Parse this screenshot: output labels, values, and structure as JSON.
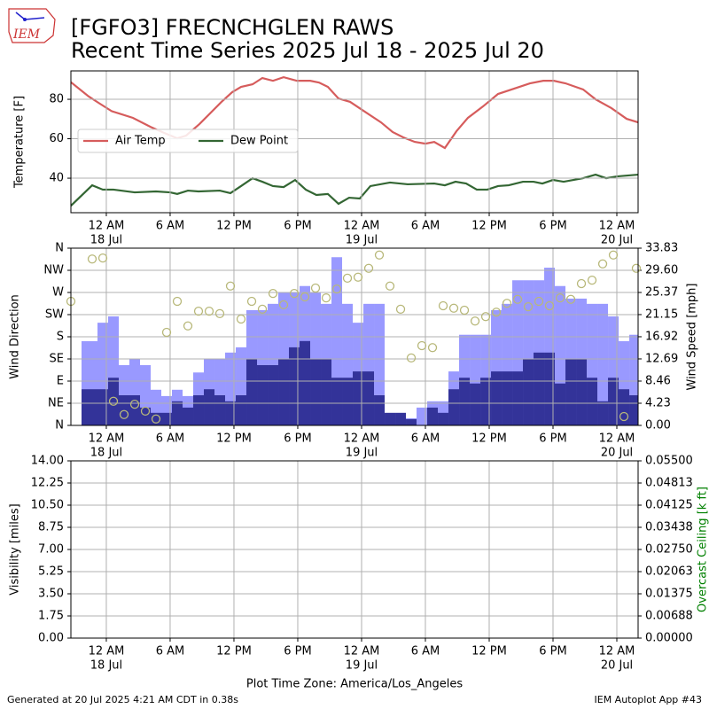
{
  "header": {
    "logo_text": "IEM",
    "title": "[FGFO3] FRECNCHGLEN RAWS",
    "subtitle": "Recent Time Series 2025 Jul 18 - 2025 Jul 20"
  },
  "x_axis": {
    "label": "Plot Time Zone: America/Los_Angeles",
    "xlim": [
      -3.33,
      50
    ],
    "xticks": [
      {
        "value": 0,
        "label": "12 AM"
      },
      {
        "value": 6,
        "label": "6 AM"
      },
      {
        "value": 12,
        "label": "12 PM"
      },
      {
        "value": 18,
        "label": "6 PM"
      },
      {
        "value": 24,
        "label": "12 AM"
      },
      {
        "value": 30,
        "label": "6 AM"
      },
      {
        "value": 36,
        "label": "12 PM"
      },
      {
        "value": 42,
        "label": "6 PM"
      },
      {
        "value": 48,
        "label": "12 AM"
      }
    ],
    "xtick_dates": [
      {
        "value": 0,
        "label": "18 Jul"
      },
      {
        "value": 24,
        "label": "19 Jul"
      },
      {
        "value": 48,
        "label": "20 Jul"
      }
    ]
  },
  "chart_data": [
    {
      "type": "line",
      "ylabel": "Temperature [F]",
      "ylim": [
        22.5,
        94.4
      ],
      "yticks": [
        40,
        60,
        80
      ],
      "grid": true,
      "legend": "upper left",
      "series": [
        {
          "name": "Air Temp",
          "color": "#d65c5c",
          "x": [
            -3.33,
            -1.67,
            -0.67,
            0.5,
            2.5,
            4.17,
            5.42,
            6.67,
            7.5,
            8.75,
            10.83,
            11.83,
            12.67,
            13.75,
            14.67,
            15.67,
            16.67,
            17.92,
            19.17,
            20,
            20.83,
            21.83,
            22.92,
            24.17,
            25.83,
            26.92,
            27.92,
            29,
            30,
            30.83,
            31.83,
            32.92,
            34,
            35.42,
            36.83,
            38.33,
            39.83,
            41.08,
            42.08,
            43.17,
            44.83,
            46,
            47.5,
            48.92,
            50
          ],
          "values": [
            88.7,
            81.5,
            78,
            74,
            70.6,
            66,
            63,
            60.2,
            61.6,
            67.4,
            78.7,
            83.6,
            86.3,
            87.6,
            90.8,
            89.4,
            91.2,
            89.4,
            89.4,
            88.5,
            86.3,
            80.4,
            78.7,
            74.2,
            68.3,
            63.4,
            60.7,
            58.4,
            57.5,
            58.4,
            55.3,
            63.8,
            70.6,
            76.4,
            82.7,
            85.4,
            88.1,
            89.4,
            89.4,
            88.1,
            85,
            80,
            75.5,
            70.1,
            68.3
          ]
        },
        {
          "name": "Dew Point",
          "color": "#336633",
          "x": [
            -3.33,
            -1.33,
            -0.33,
            0.67,
            2.67,
            4.67,
            6,
            6.67,
            7.67,
            8.67,
            10.67,
            11.67,
            12.67,
            13.75,
            14.67,
            15.67,
            16.67,
            17.75,
            18.75,
            19.75,
            20.83,
            21.83,
            22.83,
            23.83,
            24.83,
            26.67,
            28.33,
            30.83,
            31.83,
            32.83,
            33.83,
            34.83,
            35.83,
            36.83,
            37.83,
            39.17,
            40.17,
            41,
            42,
            43,
            44.83,
            46,
            47,
            48,
            50
          ],
          "values": [
            26,
            36.4,
            34.2,
            34.2,
            32.8,
            33.3,
            32.8,
            32,
            33.7,
            33.3,
            33.7,
            32.4,
            36,
            40,
            38.2,
            36,
            35.5,
            39.1,
            34.2,
            31.5,
            32,
            27,
            30.1,
            29.7,
            36,
            37.8,
            36.9,
            37.3,
            36.4,
            38.2,
            37.3,
            34.2,
            34.2,
            36,
            36.4,
            38.2,
            38.2,
            37.3,
            39.1,
            38.2,
            40,
            41.8,
            40,
            40.9,
            41.8
          ]
        }
      ]
    },
    {
      "type": "wind",
      "ylabel": "Wind Direction",
      "y2label": "Wind Speed [mph]",
      "grid": true,
      "ylim": [
        0,
        360
      ],
      "yticks": [
        {
          "value": 0,
          "label": "N"
        },
        {
          "value": 45,
          "label": "NE"
        },
        {
          "value": 90,
          "label": "E"
        },
        {
          "value": 135,
          "label": "SE"
        },
        {
          "value": 180,
          "label": "S"
        },
        {
          "value": 225,
          "label": "SW"
        },
        {
          "value": 270,
          "label": "W"
        },
        {
          "value": 315,
          "label": "NW"
        },
        {
          "value": 360,
          "label": "N"
        }
      ],
      "y2lim": [
        0,
        33.83
      ],
      "y2ticks": [
        {
          "value": 0,
          "label": "0.00"
        },
        4.23,
        8.46,
        12.69,
        16.92,
        21.15,
        25.37,
        {
          "value": 29.6,
          "label": "29.60"
        },
        33.83
      ],
      "bins": [
        -2.33,
        -0.83,
        0.17,
        1.17,
        2.17,
        3.17,
        4.17,
        5.17,
        6.17,
        7.17,
        8.17,
        9.17,
        10.17,
        11.17,
        12.17,
        13.17,
        14.17,
        15.17,
        16.17,
        17.17,
        18.17,
        19.17,
        20.17,
        21.17,
        22.17,
        23.17,
        24.17,
        25.17,
        26.17,
        27.17,
        28.17,
        29.17,
        30.17,
        31.17,
        32.17,
        33.17,
        34.17,
        35.17,
        36.17,
        37.17,
        38.17,
        39.17,
        40.17,
        41.17,
        42.17,
        43.17,
        44.17,
        45.17,
        46.17,
        47.17,
        48.17,
        49.17,
        50
      ],
      "gust": {
        "color": "#9999ff",
        "axis": "y2",
        "values": [
          16.07,
          19.6,
          20.8,
          11.5,
          12.7,
          11.5,
          6.8,
          5.6,
          6.8,
          5.6,
          10.1,
          12.7,
          12.7,
          13.9,
          14.9,
          22,
          22,
          23.2,
          25.4,
          25.4,
          26.6,
          25.4,
          23.2,
          32.1,
          23.2,
          19.6,
          23.2,
          23.2,
          1.35,
          1.35,
          1.35,
          3.4,
          4.6,
          4.6,
          10.3,
          17.3,
          17.3,
          17.3,
          22,
          23.2,
          27.7,
          27.7,
          27.7,
          30.1,
          26.6,
          24.2,
          24.2,
          23.2,
          23.2,
          20.8,
          16.07,
          17.3
        ]
      },
      "speed": {
        "color": "#333399",
        "axis": "y2",
        "values": [
          6.9,
          6.9,
          9.1,
          5.75,
          5.75,
          3.4,
          2.4,
          2.4,
          4.6,
          3.4,
          5.75,
          6.9,
          5.75,
          4.6,
          5.75,
          12.7,
          11.5,
          11.5,
          12.7,
          14.9,
          16.1,
          12.7,
          12.7,
          9.1,
          9.1,
          10.3,
          10.3,
          5.75,
          2.4,
          2.4,
          1.2,
          0,
          3.4,
          2.4,
          6.9,
          9.1,
          8,
          9.1,
          10.3,
          10.3,
          10.3,
          12.7,
          13.9,
          13.9,
          8,
          12.7,
          12.7,
          9.1,
          4.6,
          9.1,
          6.9,
          5.75
        ]
      },
      "direction": {
        "color": "#b8b87a",
        "x": [
          -3.33,
          -1.33,
          -0.33,
          0.67,
          1.67,
          2.67,
          3.67,
          4.67,
          5.67,
          6.67,
          7.67,
          8.67,
          9.67,
          10.67,
          11.67,
          12.67,
          13.67,
          14.67,
          15.67,
          16.67,
          17.67,
          18.67,
          19.67,
          20.67,
          21.67,
          22.67,
          23.67,
          24.67,
          25.67,
          26.67,
          27.67,
          28.67,
          29.67,
          30.67,
          31.67,
          32.67,
          33.67,
          34.67,
          35.67,
          36.67,
          37.67,
          38.67,
          39.67,
          40.67,
          41.67,
          42.67,
          43.67,
          44.67,
          45.67,
          46.67,
          47.67,
          48.67,
          49.83
        ],
        "values": [
          252,
          338,
          340,
          49,
          22,
          43,
          29,
          13,
          189,
          252,
          202,
          232,
          232,
          227,
          283,
          216,
          252,
          236,
          268,
          245,
          268,
          261,
          279,
          259,
          277,
          299,
          301,
          319,
          346,
          283,
          236,
          137,
          162,
          158,
          243,
          238,
          234,
          212,
          221,
          230,
          248,
          256,
          241,
          252,
          243,
          259,
          256,
          288,
          295,
          328,
          346,
          18,
          319
        ]
      }
    },
    {
      "type": "line",
      "ylabel": "Visibility [miles]",
      "y2label": "Overcast Ceiling [k ft]",
      "y2label_color": "#008000",
      "grid": true,
      "ylim": [
        0,
        14
      ],
      "yticks": [
        {
          "value": 0,
          "label": "0.00"
        },
        1.75,
        {
          "value": 3.5,
          "label": "3.50"
        },
        5.25,
        {
          "value": 7,
          "label": "7.00"
        },
        8.75,
        {
          "value": 10.5,
          "label": "10.50"
        },
        12.25,
        {
          "value": 14,
          "label": "14.00"
        }
      ],
      "y2lim": [
        0,
        0.055
      ],
      "y2ticks": [
        {
          "value": 0,
          "label": "0.00000"
        },
        {
          "value": 0.006875,
          "label": "0.00688"
        },
        0.01375,
        {
          "value": 0.020625,
          "label": "0.02063"
        },
        {
          "value": 0.0275,
          "label": "0.02750"
        },
        {
          "value": 0.034375,
          "label": "0.03438"
        },
        0.04125,
        {
          "value": 0.048125,
          "label": "0.04813"
        },
        {
          "value": 0.055,
          "label": "0.05500"
        }
      ]
    }
  ],
  "footer": {
    "left": "Generated at 20 Jul 2025 4:21 AM CDT in 0.38s",
    "right": "IEM Autoplot App #43"
  }
}
